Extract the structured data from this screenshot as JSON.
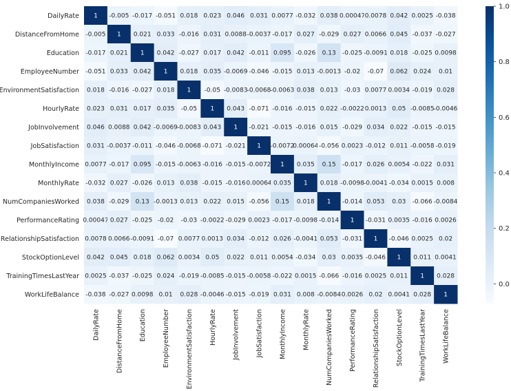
{
  "chart_data": {
    "type": "heatmap",
    "title": "",
    "labels": [
      "DailyRate",
      "DistanceFromHome",
      "Education",
      "EmployeeNumber",
      "EnvironmentSatisfaction",
      "HourlyRate",
      "JobInvolvement",
      "JobSatisfaction",
      "MonthlyIncome",
      "MonthlyRate",
      "NumCompaniesWorked",
      "PerformanceRating",
      "RelationshipSatisfaction",
      "StockOptionLevel",
      "TrainingTimesLastYear",
      "WorkLifeBalance"
    ],
    "matrix": [
      [
        1,
        -0.005,
        -0.017,
        -0.051,
        0.018,
        0.023,
        0.046,
        0.031,
        0.0077,
        -0.032,
        0.038,
        0.00047,
        0.0078,
        0.042,
        0.0025,
        -0.038
      ],
      [
        -0.005,
        1,
        0.021,
        0.033,
        -0.016,
        0.031,
        0.0088,
        -0.0037,
        -0.017,
        0.027,
        -0.029,
        0.027,
        0.0066,
        0.045,
        -0.037,
        -0.027
      ],
      [
        -0.017,
        0.021,
        1,
        0.042,
        -0.027,
        0.017,
        0.042,
        -0.011,
        0.095,
        -0.026,
        0.13,
        -0.025,
        -0.0091,
        0.018,
        -0.025,
        0.0098
      ],
      [
        -0.051,
        0.033,
        0.042,
        1,
        0.018,
        0.035,
        -0.0069,
        -0.046,
        -0.015,
        0.013,
        -0.0013,
        -0.02,
        -0.07,
        0.062,
        0.024,
        0.01
      ],
      [
        0.018,
        -0.016,
        -0.027,
        0.018,
        1,
        -0.05,
        -0.0083,
        -0.0068,
        -0.0063,
        0.038,
        0.013,
        -0.03,
        0.0077,
        0.0034,
        -0.019,
        0.028
      ],
      [
        0.023,
        0.031,
        0.017,
        0.035,
        -0.05,
        1,
        0.043,
        -0.071,
        -0.016,
        -0.015,
        0.022,
        -0.0022,
        0.0013,
        0.05,
        -0.0085,
        -0.0046
      ],
      [
        0.046,
        0.0088,
        0.042,
        -0.0069,
        -0.0083,
        0.043,
        1,
        -0.021,
        -0.015,
        -0.016,
        0.015,
        -0.029,
        0.034,
        0.022,
        -0.015,
        -0.015
      ],
      [
        0.031,
        -0.0037,
        -0.011,
        -0.046,
        -0.0068,
        -0.071,
        -0.021,
        1,
        -0.0072,
        0.00064,
        -0.056,
        0.0023,
        -0.012,
        0.011,
        -0.0058,
        -0.019
      ],
      [
        0.0077,
        -0.017,
        0.095,
        -0.015,
        -0.0063,
        -0.016,
        -0.015,
        -0.0072,
        1,
        0.035,
        0.15,
        -0.017,
        0.026,
        0.0054,
        -0.022,
        0.031
      ],
      [
        -0.032,
        0.027,
        -0.026,
        0.013,
        0.038,
        -0.015,
        -0.016,
        0.00064,
        0.035,
        1,
        0.018,
        -0.0098,
        -0.0041,
        -0.034,
        0.0015,
        0.008
      ],
      [
        0.038,
        -0.029,
        0.13,
        -0.0013,
        0.013,
        0.022,
        0.015,
        -0.056,
        0.15,
        0.018,
        1,
        -0.014,
        0.053,
        0.03,
        -0.066,
        -0.0084
      ],
      [
        0.00047,
        0.027,
        -0.025,
        -0.02,
        -0.03,
        -0.0022,
        -0.029,
        0.0023,
        -0.017,
        -0.0098,
        -0.014,
        1,
        -0.031,
        0.0035,
        -0.016,
        0.0026
      ],
      [
        0.0078,
        0.0066,
        -0.0091,
        -0.07,
        0.0077,
        0.0013,
        0.034,
        -0.012,
        0.026,
        -0.0041,
        0.053,
        -0.031,
        1,
        -0.046,
        0.0025,
        0.02
      ],
      [
        0.042,
        0.045,
        0.018,
        0.062,
        0.0034,
        0.05,
        0.022,
        0.011,
        0.0054,
        -0.034,
        0.03,
        0.0035,
        -0.046,
        1,
        0.011,
        0.0041
      ],
      [
        0.0025,
        -0.037,
        -0.025,
        0.024,
        -0.019,
        -0.0085,
        -0.015,
        -0.0058,
        -0.022,
        0.0015,
        -0.066,
        -0.016,
        0.0025,
        0.011,
        1,
        0.028
      ],
      [
        -0.038,
        -0.027,
        0.0098,
        0.01,
        0.028,
        -0.0046,
        -0.015,
        -0.019,
        0.031,
        0.008,
        -0.0084,
        0.0026,
        0.02,
        0.0041,
        0.028,
        1
      ]
    ],
    "colorbar": {
      "range": [
        -0.071,
        1
      ],
      "ticks": [
        "0.0",
        "0.2",
        "0.4",
        "0.6",
        "0.8",
        "1.0"
      ],
      "tick_values": [
        0,
        0.2,
        0.4,
        0.6,
        0.8,
        1.0
      ],
      "colormap": "Blues",
      "low_color": "#f7fbff",
      "high_color": "#08306b"
    },
    "annotated": true
  }
}
